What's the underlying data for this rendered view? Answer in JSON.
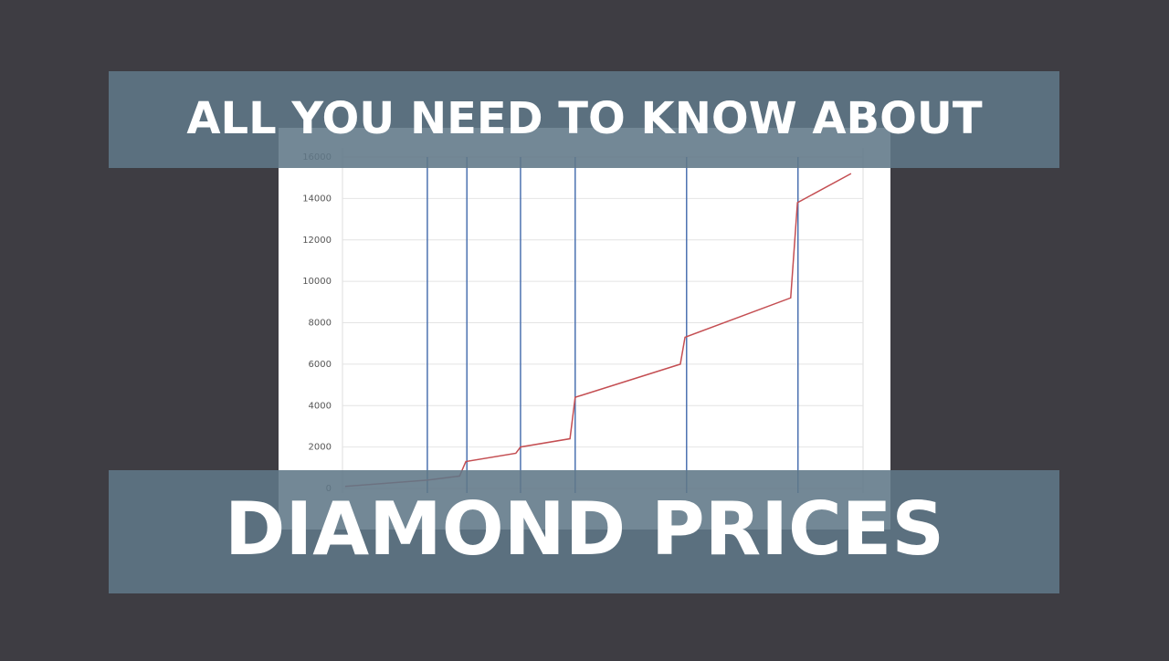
{
  "banner": {
    "top": "ALL YOU NEED TO KNOW ABOUT",
    "bottom": "DIAMOND PRICES"
  },
  "chart_data": {
    "type": "line",
    "x": [
      0.005,
      0.163,
      0.225,
      0.237,
      0.333,
      0.342,
      0.437,
      0.447,
      0.649,
      0.658,
      0.861,
      0.874,
      0.977
    ],
    "series": [
      {
        "color": "#c44e52",
        "values": [
          100,
          400,
          600,
          1300,
          1700,
          2000,
          2400,
          4400,
          6000,
          7300,
          9200,
          13800,
          15200
        ]
      }
    ],
    "vertical_lines": {
      "color": "#4c72b0",
      "x": [
        0.163,
        0.239,
        0.342,
        0.447,
        0.661,
        0.875
      ]
    },
    "xlim": [
      0,
      1
    ],
    "ylim": [
      0,
      16000
    ],
    "yticks": [
      0,
      2000,
      4000,
      6000,
      8000,
      10000,
      12000,
      14000,
      16000
    ],
    "grid": true
  }
}
